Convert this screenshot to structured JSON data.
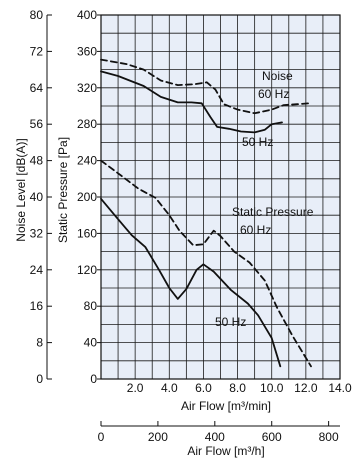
{
  "chart_data": {
    "type": "line",
    "title": "",
    "plot_background": "#e8eef8",
    "grid": true,
    "x_axis": {
      "label": "Air Flow [m³/min]",
      "range": [
        0,
        14
      ],
      "ticks": [
        2,
        4,
        6,
        8,
        10,
        12,
        14
      ],
      "tick_labels": [
        "2.0",
        "4.0",
        "6.0",
        "8.0",
        "10.0",
        "12.0",
        "14.0"
      ]
    },
    "x2_axis": {
      "label": "Air Flow [m³/h]",
      "range": [
        0,
        840
      ],
      "ticks": [
        0,
        200,
        400,
        600,
        800
      ],
      "tick_labels": [
        "0",
        "200",
        "400",
        "600",
        "800"
      ]
    },
    "y_left_axis": {
      "label": "Noise Level [dB(A)]",
      "range": [
        0,
        80
      ],
      "ticks": [
        0,
        8,
        16,
        24,
        32,
        40,
        48,
        56,
        64,
        72,
        80
      ],
      "tick_labels": [
        "0",
        "8",
        "16",
        "24",
        "32",
        "40",
        "48",
        "56",
        "64",
        "72",
        "80"
      ]
    },
    "y_right_axis": {
      "label": "Static Pressure [Pa]",
      "range": [
        0,
        400
      ],
      "ticks": [
        0,
        40,
        80,
        120,
        160,
        200,
        240,
        280,
        320,
        360,
        400
      ],
      "tick_labels": [
        "0",
        "40",
        "80",
        "120",
        "160",
        "200",
        "240",
        "280",
        "320",
        "360",
        "400"
      ]
    },
    "series": [
      {
        "name": "60 Hz",
        "group": "Noise",
        "style": "dashed",
        "color": "#111111",
        "points": [
          [
            0,
            351
          ],
          [
            1.5,
            346
          ],
          [
            2.5,
            340
          ],
          [
            3.5,
            328
          ],
          [
            4.5,
            323
          ],
          [
            5.5,
            324
          ],
          [
            6.2,
            326
          ],
          [
            6.7,
            318
          ],
          [
            7.2,
            302
          ],
          [
            8.0,
            296
          ],
          [
            9.0,
            292
          ],
          [
            10.0,
            296
          ],
          [
            10.7,
            301
          ],
          [
            11.5,
            302
          ],
          [
            12.2,
            303
          ]
        ]
      },
      {
        "name": "50 Hz",
        "group": "Noise",
        "style": "solid",
        "color": "#111111",
        "points": [
          [
            0,
            338
          ],
          [
            1.0,
            333
          ],
          [
            2.5,
            322
          ],
          [
            3.5,
            310
          ],
          [
            4.5,
            304
          ],
          [
            5.3,
            304
          ],
          [
            5.9,
            303
          ],
          [
            6.4,
            288
          ],
          [
            6.8,
            277
          ],
          [
            7.5,
            275
          ],
          [
            8.2,
            272
          ],
          [
            9.0,
            271
          ],
          [
            9.6,
            274
          ],
          [
            10.0,
            280
          ],
          [
            10.6,
            282
          ]
        ]
      },
      {
        "name": "60 Hz",
        "group": "Static Pressure",
        "style": "dashed",
        "color": "#111111",
        "points": [
          [
            0,
            240
          ],
          [
            1.0,
            226
          ],
          [
            2.2,
            209
          ],
          [
            3.2,
            199
          ],
          [
            4.0,
            180
          ],
          [
            4.6,
            163
          ],
          [
            5.4,
            147
          ],
          [
            6.0,
            148
          ],
          [
            6.6,
            163
          ],
          [
            7.0,
            157
          ],
          [
            7.8,
            140
          ],
          [
            8.7,
            128
          ],
          [
            9.6,
            108
          ],
          [
            10.3,
            79
          ],
          [
            11.2,
            48
          ],
          [
            12.3,
            14
          ]
        ]
      },
      {
        "name": "50 Hz",
        "group": "Static Pressure",
        "style": "solid",
        "color": "#111111",
        "points": [
          [
            0,
            198
          ],
          [
            0.8,
            180
          ],
          [
            1.8,
            158
          ],
          [
            2.6,
            145
          ],
          [
            3.4,
            120
          ],
          [
            4.0,
            100
          ],
          [
            4.5,
            88
          ],
          [
            5.0,
            99
          ],
          [
            5.6,
            120
          ],
          [
            6.0,
            126
          ],
          [
            6.6,
            118
          ],
          [
            7.6,
            98
          ],
          [
            8.6,
            83
          ],
          [
            9.2,
            70
          ],
          [
            10.0,
            45
          ],
          [
            10.5,
            14
          ]
        ]
      }
    ],
    "annotations": {
      "noise_title": "Noise",
      "noise_60": "60 Hz",
      "noise_50": "50 Hz",
      "sp_title": "Static Pressure",
      "sp_60": "60 Hz",
      "sp_50": "50 Hz"
    }
  }
}
